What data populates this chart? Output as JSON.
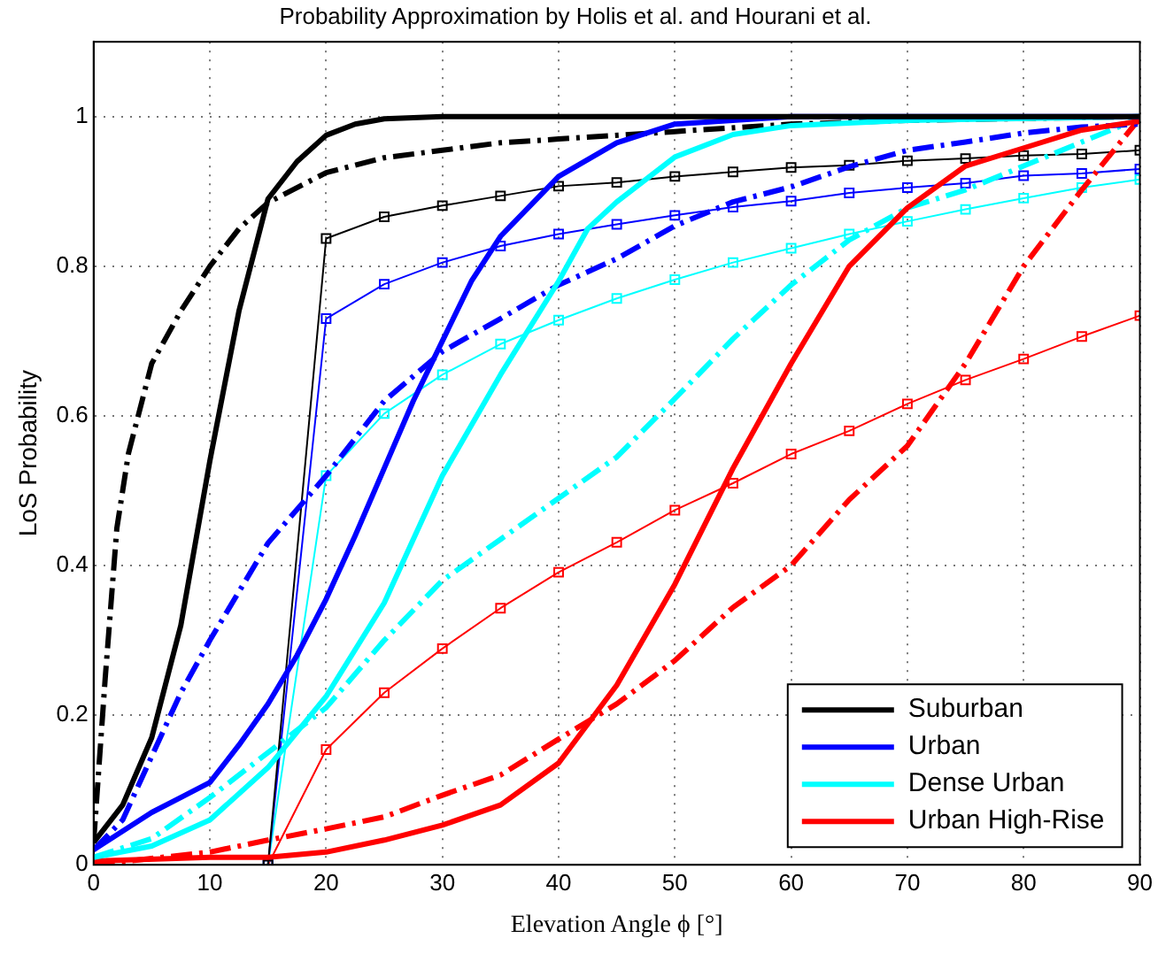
{
  "chart_data": {
    "type": "line",
    "title": "Probability Approximation by Holis et al. and Hourani et al.",
    "xlabel": "Elevation Angle ϕ [°]",
    "ylabel": "LoS Probability",
    "xlim": [
      0,
      90
    ],
    "xticks": [
      0,
      10,
      20,
      30,
      40,
      50,
      60,
      70,
      80,
      90
    ],
    "ylim": [
      0,
      1.1
    ],
    "yticks": [
      0,
      0.2,
      0.4,
      0.6,
      0.8,
      1
    ],
    "grid": true,
    "legend": "bottom right",
    "series": [
      {
        "name": "Suburban",
        "color": "#000000",
        "line_style": "solid",
        "marker": "none",
        "x": [
          0,
          2.5,
          5,
          7.5,
          10,
          12.5,
          15,
          17.5,
          20,
          22.5,
          25,
          30,
          90
        ],
        "values": [
          0.03,
          0.08,
          0.17,
          0.32,
          0.54,
          0.74,
          0.89,
          0.94,
          0.975,
          0.99,
          0.997,
          1,
          1
        ]
      },
      {
        "name": "Urban",
        "color": "#0000ff",
        "line_style": "solid",
        "marker": "none",
        "x": [
          0,
          5,
          7.5,
          10,
          12.5,
          15,
          17.5,
          20,
          22.5,
          25,
          27.5,
          30,
          32.5,
          35,
          40,
          45,
          50,
          60,
          90
        ],
        "values": [
          0.02,
          0.07,
          0.09,
          0.11,
          0.16,
          0.215,
          0.28,
          0.355,
          0.44,
          0.53,
          0.62,
          0.7,
          0.78,
          0.84,
          0.92,
          0.965,
          0.99,
          1,
          1
        ]
      },
      {
        "name": "Dense Urban",
        "color": "#00ffff",
        "line_style": "solid",
        "marker": "none",
        "x": [
          0,
          5,
          10,
          15,
          20,
          25,
          30,
          35,
          40,
          42.5,
          45,
          50,
          55,
          60,
          70,
          90
        ],
        "values": [
          0.01,
          0.025,
          0.06,
          0.13,
          0.225,
          0.35,
          0.52,
          0.655,
          0.78,
          0.85,
          0.886,
          0.946,
          0.976,
          0.988,
          0.995,
          1
        ]
      },
      {
        "name": "Urban High-Rise",
        "color": "#ff0000",
        "line_style": "solid",
        "marker": "none",
        "x": [
          0,
          10,
          15,
          20,
          25,
          30,
          35,
          40,
          45,
          50,
          55,
          60,
          65,
          70,
          75,
          80,
          85,
          90
        ],
        "values": [
          0.005,
          0.01,
          0.01,
          0.017,
          0.033,
          0.053,
          0.08,
          0.136,
          0.24,
          0.375,
          0.53,
          0.67,
          0.8,
          0.878,
          0.934,
          0.958,
          0.982,
          0.994
        ]
      },
      {
        "color": "#000000",
        "line_style": "dashed",
        "marker": "none",
        "x": [
          0,
          1,
          2,
          3,
          5,
          7.5,
          10,
          12.5,
          15,
          20,
          25,
          30,
          35,
          40,
          50,
          60,
          70,
          90
        ],
        "values": [
          0.03,
          0.25,
          0.45,
          0.55,
          0.67,
          0.74,
          0.8,
          0.85,
          0.885,
          0.925,
          0.945,
          0.955,
          0.965,
          0.97,
          0.98,
          0.99,
          0.995,
          1
        ]
      },
      {
        "color": "#0000ff",
        "line_style": "dashed",
        "marker": "none",
        "x": [
          0,
          2.5,
          5,
          7.5,
          10,
          15,
          20,
          25,
          30,
          35,
          40,
          45,
          50,
          55,
          60,
          65,
          70,
          75,
          80,
          85,
          90
        ],
        "values": [
          0.02,
          0.06,
          0.145,
          0.23,
          0.3,
          0.43,
          0.52,
          0.62,
          0.686,
          0.73,
          0.775,
          0.81,
          0.854,
          0.886,
          0.906,
          0.933,
          0.955,
          0.966,
          0.978,
          0.986,
          0.99
        ]
      },
      {
        "color": "#00ffff",
        "line_style": "dashed",
        "marker": "none",
        "x": [
          0,
          5,
          10,
          15,
          20,
          25,
          30,
          35,
          40,
          45,
          50,
          55,
          60,
          65,
          70,
          75,
          80,
          85,
          90
        ],
        "values": [
          0.01,
          0.035,
          0.09,
          0.15,
          0.21,
          0.3,
          0.38,
          0.435,
          0.49,
          0.545,
          0.623,
          0.703,
          0.775,
          0.835,
          0.878,
          0.902,
          0.934,
          0.966,
          0.998
        ]
      },
      {
        "color": "#ff0000",
        "line_style": "dashed",
        "marker": "none",
        "x": [
          0,
          10,
          15,
          20,
          25,
          30,
          35,
          40,
          45,
          50,
          55,
          60,
          65,
          70,
          75,
          80,
          85,
          90
        ],
        "values": [
          0,
          0.017,
          0.033,
          0.048,
          0.064,
          0.093,
          0.12,
          0.168,
          0.215,
          0.273,
          0.344,
          0.4,
          0.488,
          0.56,
          0.67,
          0.8,
          0.902,
          0.998
        ]
      },
      {
        "color": "#000000",
        "line_style": "solid",
        "marker": "square",
        "x": [
          15,
          20,
          25,
          30,
          35,
          40,
          45,
          50,
          55,
          60,
          65,
          70,
          75,
          80,
          85,
          90
        ],
        "values": [
          0,
          0.837,
          0.866,
          0.881,
          0.894,
          0.907,
          0.912,
          0.92,
          0.926,
          0.932,
          0.935,
          0.941,
          0.944,
          0.948,
          0.95,
          0.955
        ]
      },
      {
        "color": "#0000ff",
        "line_style": "solid",
        "marker": "square",
        "x": [
          15,
          20,
          25,
          30,
          35,
          40,
          45,
          50,
          55,
          60,
          65,
          70,
          75,
          80,
          85,
          90
        ],
        "values": [
          0,
          0.73,
          0.776,
          0.805,
          0.827,
          0.843,
          0.856,
          0.868,
          0.879,
          0.887,
          0.898,
          0.905,
          0.911,
          0.921,
          0.924,
          0.93
        ]
      },
      {
        "color": "#00ffff",
        "line_style": "solid",
        "marker": "square",
        "x": [
          15,
          20,
          25,
          30,
          35,
          40,
          45,
          50,
          55,
          60,
          65,
          70,
          75,
          80,
          85,
          90
        ],
        "values": [
          0,
          0.52,
          0.603,
          0.655,
          0.696,
          0.728,
          0.757,
          0.782,
          0.805,
          0.824,
          0.843,
          0.86,
          0.876,
          0.891,
          0.905,
          0.916
        ]
      },
      {
        "color": "#ff0000",
        "line_style": "solid",
        "marker": "square",
        "x": [
          15,
          20,
          25,
          30,
          35,
          40,
          45,
          50,
          55,
          60,
          65,
          70,
          75,
          80,
          85,
          90
        ],
        "values": [
          0,
          0.154,
          0.23,
          0.289,
          0.343,
          0.391,
          0.431,
          0.474,
          0.51,
          0.549,
          0.58,
          0.616,
          0.648,
          0.676,
          0.706,
          0.734
        ]
      }
    ]
  }
}
